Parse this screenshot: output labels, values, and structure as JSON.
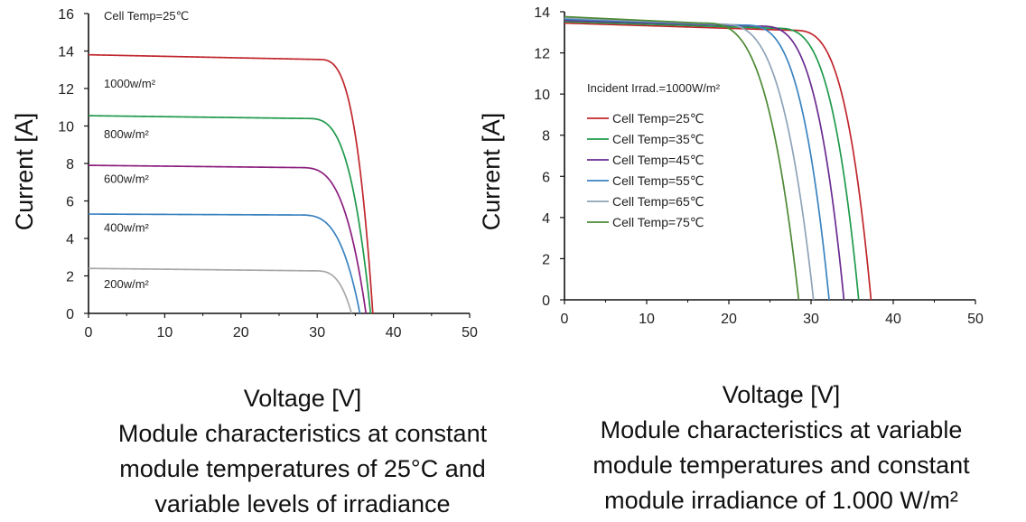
{
  "chart_data": [
    {
      "type": "line",
      "ylabel": "Current [A]",
      "xlabel": "Voltage [V]",
      "caption": [
        "Module characteristics at constant",
        "module temperatures of 25°C and",
        "variable levels of irradiance"
      ],
      "annotation": "Cell Temp=25℃",
      "xlim": [
        0,
        50
      ],
      "ylim": [
        0,
        16
      ],
      "xticks": [
        "0",
        "10",
        "20",
        "30",
        "40",
        "50"
      ],
      "yticks": [
        "0",
        "2",
        "4",
        "6",
        "8",
        "10",
        "12",
        "14",
        "16"
      ],
      "series": [
        {
          "name": "1000w/m²",
          "color": "#c0272d",
          "isc": 13.8,
          "imp": 13.55,
          "vknee": 30,
          "voc": 37.3,
          "label_y": 12.3
        },
        {
          "name": "800w/m²",
          "color": "#1f9a4b",
          "isc": 10.55,
          "imp": 10.4,
          "vknee": 28.5,
          "voc": 37.0,
          "label_y": 9.6
        },
        {
          "name": "600w/m²",
          "color": "#8b1e7e",
          "isc": 7.9,
          "imp": 7.78,
          "vknee": 27.5,
          "voc": 36.4,
          "label_y": 7.2
        },
        {
          "name": "400w/m²",
          "color": "#3a83c0",
          "isc": 5.3,
          "imp": 5.25,
          "vknee": 27.5,
          "voc": 35.6,
          "label_y": 4.6
        },
        {
          "name": "200w/m²",
          "color": "#a8a8a8",
          "isc": 2.4,
          "imp": 2.27,
          "vknee": 29.5,
          "voc": 34.5,
          "label_y": 1.6
        }
      ]
    },
    {
      "type": "line",
      "ylabel": "Current [A]",
      "xlabel": "Voltage [V]",
      "caption": [
        "Module characteristics at variable",
        "module temperatures and constant",
        "module irradiance of 1.000 W/m²"
      ],
      "annotation": "Incident Irrad.=1000W/m²",
      "xlim": [
        0,
        50
      ],
      "ylim": [
        0,
        14
      ],
      "xticks": [
        "0",
        "10",
        "20",
        "30",
        "40",
        "50"
      ],
      "yticks": [
        "0",
        "2",
        "4",
        "6",
        "8",
        "10",
        "12",
        "14"
      ],
      "series": [
        {
          "name": "Cell Temp=25℃",
          "color": "#c0272d",
          "isc": 13.45,
          "imp": 13.1,
          "vknee": 27.5,
          "voc": 37.3
        },
        {
          "name": "Cell Temp=35℃",
          "color": "#1f9a4b",
          "isc": 13.52,
          "imp": 13.2,
          "vknee": 25.5,
          "voc": 35.8
        },
        {
          "name": "Cell Temp=45℃",
          "color": "#6a2c91",
          "isc": 13.58,
          "imp": 13.3,
          "vknee": 23.5,
          "voc": 34.0
        },
        {
          "name": "Cell Temp=55℃",
          "color": "#3a83c0",
          "isc": 13.64,
          "imp": 13.35,
          "vknee": 21.5,
          "voc": 32.2
        },
        {
          "name": "Cell Temp=65℃",
          "color": "#8fa3b8",
          "isc": 13.7,
          "imp": 13.4,
          "vknee": 18.5,
          "voc": 30.3
        },
        {
          "name": "Cell Temp=75℃",
          "color": "#4d8a35",
          "isc": 13.76,
          "imp": 13.45,
          "vknee": 16.5,
          "voc": 28.5
        }
      ]
    }
  ]
}
